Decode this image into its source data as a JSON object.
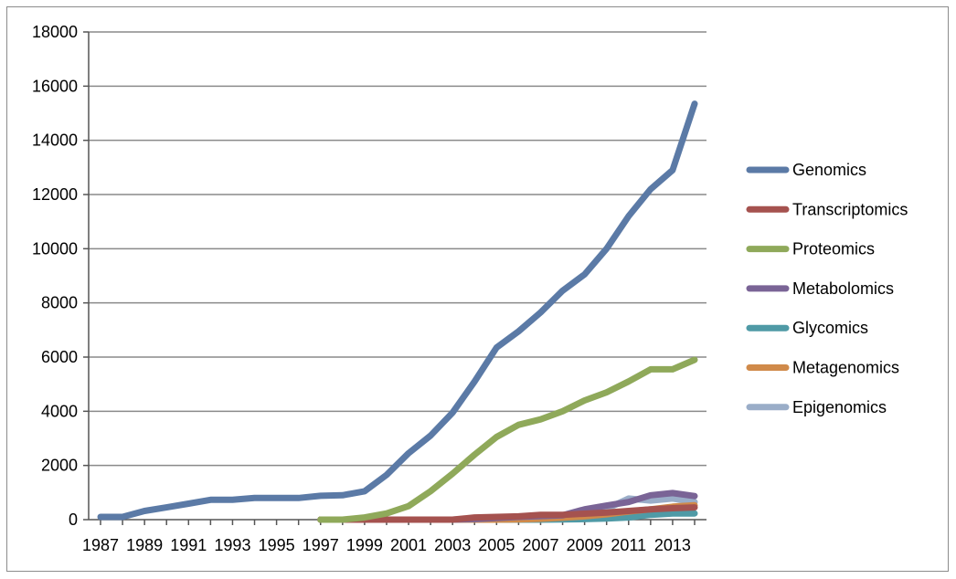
{
  "chart_data": {
    "type": "line",
    "title": "",
    "xlabel": "",
    "ylabel": "",
    "ylim": [
      0,
      18000
    ],
    "yticks": [
      "0",
      "2000",
      "4000",
      "6000",
      "8000",
      "10000",
      "12000",
      "14000",
      "16000",
      "18000"
    ],
    "xticks": [
      "1987",
      "1989",
      "1991",
      "1993",
      "1995",
      "1997",
      "1999",
      "2001",
      "2003",
      "2005",
      "2007",
      "2009",
      "2011",
      "2013"
    ],
    "grid": "horizontal",
    "legend": "right",
    "x": [
      1987,
      1988,
      1989,
      1990,
      1991,
      1992,
      1993,
      1994,
      1995,
      1996,
      1997,
      1998,
      1999,
      2000,
      2001,
      2002,
      2003,
      2004,
      2005,
      2006,
      2007,
      2008,
      2009,
      2010,
      2011,
      2012,
      2013,
      2014
    ],
    "series": [
      {
        "name": "Genomics",
        "color": "#5b7aa6",
        "values": [
          100,
          100,
          320,
          450,
          590,
          730,
          730,
          800,
          800,
          800,
          880,
          900,
          1050,
          1650,
          2450,
          3100,
          3950,
          5100,
          6350,
          6950,
          7650,
          8450,
          9050,
          10000,
          11200,
          12200,
          12900,
          15350
        ]
      },
      {
        "name": "Transcriptomics",
        "color": "#a5524f",
        "values": [
          null,
          null,
          null,
          null,
          null,
          null,
          null,
          null,
          null,
          null,
          0,
          0,
          0,
          0,
          0,
          0,
          0,
          80,
          100,
          120,
          180,
          180,
          220,
          260,
          320,
          380,
          420,
          450
        ]
      },
      {
        "name": "Proteomics",
        "color": "#8fa95a",
        "values": [
          null,
          null,
          null,
          null,
          null,
          null,
          null,
          null,
          null,
          null,
          0,
          0,
          80,
          230,
          500,
          1050,
          1700,
          2400,
          3050,
          3500,
          3700,
          4000,
          4400,
          4700,
          5100,
          5550,
          5550,
          5900
        ]
      },
      {
        "name": "Metabolomics",
        "color": "#7a6496",
        "values": [
          null,
          null,
          null,
          null,
          null,
          null,
          null,
          null,
          null,
          null,
          0,
          0,
          0,
          0,
          0,
          0,
          0,
          20,
          60,
          100,
          130,
          160,
          380,
          520,
          650,
          900,
          980,
          870
        ]
      },
      {
        "name": "Glycomics",
        "color": "#4f9aa6",
        "values": [
          null,
          null,
          null,
          null,
          null,
          null,
          null,
          null,
          null,
          null,
          0,
          0,
          0,
          0,
          0,
          0,
          0,
          0,
          0,
          0,
          0,
          10,
          20,
          40,
          80,
          180,
          230,
          230
        ]
      },
      {
        "name": "Metagenomics",
        "color": "#d08a4a",
        "values": [
          null,
          null,
          null,
          null,
          null,
          null,
          null,
          null,
          null,
          null,
          0,
          0,
          0,
          0,
          0,
          0,
          0,
          0,
          0,
          10,
          30,
          70,
          120,
          200,
          300,
          380,
          480,
          530
        ]
      },
      {
        "name": "Epigenomics",
        "color": "#9aadc8",
        "values": [
          null,
          null,
          null,
          null,
          null,
          null,
          null,
          null,
          null,
          null,
          0,
          0,
          0,
          0,
          0,
          0,
          0,
          0,
          10,
          30,
          60,
          100,
          250,
          400,
          780,
          700,
          780,
          650
        ]
      }
    ]
  }
}
